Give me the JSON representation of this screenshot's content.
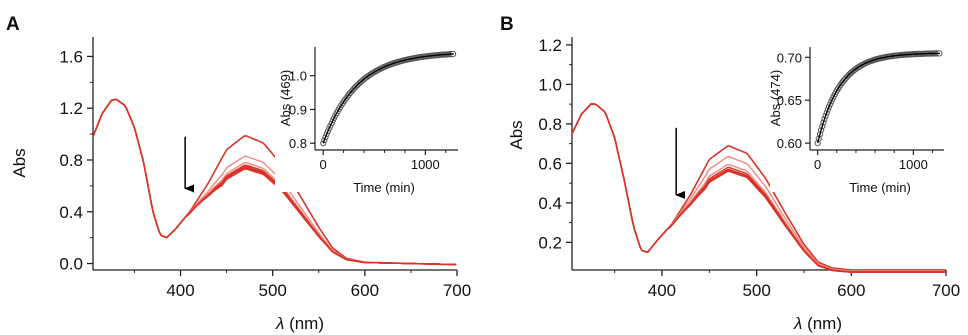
{
  "colors": {
    "spectra": "#d8342a",
    "spectra_light": "#ee8a80",
    "fit": "#000000",
    "axis": "#222222"
  },
  "chart_data": [
    {
      "panel": "A",
      "type": "line",
      "xlabel_symbol": "λ",
      "xlabel_unit": " (nm)",
      "ylabel": "Abs",
      "xlim": [
        305,
        700
      ],
      "ylim": [
        -0.05,
        1.75
      ],
      "xticks": [
        400,
        500,
        600,
        700
      ],
      "yticks": [
        0.0,
        0.4,
        0.8,
        1.2,
        1.6
      ],
      "ytick_labels": [
        "0.0",
        "0.4",
        "0.8",
        "1.2",
        "1.6"
      ],
      "spectrum_template": {
        "x": [
          305,
          315,
          325,
          330,
          340,
          350,
          360,
          370,
          378,
          385,
          395,
          410,
          430,
          450,
          470,
          490,
          510,
          530,
          550,
          565,
          580,
          600,
          650,
          700
        ],
        "y": [
          0.98,
          1.16,
          1.26,
          1.27,
          1.22,
          1.05,
          0.78,
          0.4,
          0.22,
          0.2,
          0.27,
          0.4,
          0.62,
          0.88,
          0.99,
          0.93,
          0.76,
          0.52,
          0.28,
          0.12,
          0.04,
          0.01,
          0.0,
          -0.01
        ]
      },
      "series_peaks": [
        1.0,
        0.84,
        0.79,
        0.77,
        0.76,
        0.75,
        0.745,
        0.74
      ],
      "arrow": {
        "x": 405,
        "y_from": 0.98,
        "y_to": 0.58
      },
      "inset": {
        "type": "scatter",
        "xlabel": "Time (min)",
        "ylabel": "Abs (469)",
        "xlim": [
          -80,
          1320
        ],
        "ylim": [
          0.78,
          1.085
        ],
        "xticks": [
          0,
          1000
        ],
        "xtick_labels": [
          "0",
          "1000"
        ],
        "yticks": [
          0.8,
          0.9,
          1.0
        ],
        "ytick_labels": [
          "0.8",
          "0.9",
          "1.0"
        ],
        "fit": {
          "y0": 0.8,
          "y_inf": 1.07,
          "tau": 330
        }
      }
    },
    {
      "panel": "B",
      "type": "line",
      "xlabel_symbol": "λ",
      "xlabel_unit": " (nm)",
      "ylabel": "Abs",
      "xlim": [
        305,
        700
      ],
      "ylim": [
        0.06,
        1.24
      ],
      "xticks": [
        400,
        500,
        600,
        700
      ],
      "yticks": [
        0.2,
        0.4,
        0.6,
        0.8,
        1.0,
        1.2
      ],
      "ytick_labels": [
        "0.2",
        "0.4",
        "0.6",
        "0.8",
        "1.0",
        "1.2"
      ],
      "spectrum_template": {
        "x": [
          305,
          315,
          325,
          330,
          340,
          350,
          360,
          370,
          378,
          385,
          395,
          410,
          430,
          450,
          470,
          490,
          510,
          530,
          550,
          565,
          580,
          600,
          650,
          700
        ],
        "y": [
          0.75,
          0.85,
          0.9,
          0.9,
          0.86,
          0.73,
          0.52,
          0.28,
          0.16,
          0.15,
          0.21,
          0.29,
          0.44,
          0.62,
          0.69,
          0.65,
          0.52,
          0.35,
          0.19,
          0.1,
          0.07,
          0.06,
          0.06,
          0.06
        ]
      },
      "series_peaks": [
        0.695,
        0.64,
        0.6,
        0.585,
        0.575,
        0.57,
        0.565
      ],
      "arrow": {
        "x": 415,
        "y_from": 0.78,
        "y_to": 0.44
      },
      "inset": {
        "type": "scatter",
        "xlabel": "Time (min)",
        "ylabel": "Abs (474)",
        "xlim": [
          -80,
          1320
        ],
        "ylim": [
          0.592,
          0.712
        ],
        "xticks": [
          0,
          1000
        ],
        "xtick_labels": [
          "0",
          "1000"
        ],
        "yticks": [
          0.6,
          0.65,
          0.7
        ],
        "ytick_labels": [
          "0.60",
          "0.65",
          "0.70"
        ],
        "fit": {
          "y0": 0.6,
          "y_inf": 0.705,
          "tau": 230
        }
      }
    }
  ]
}
